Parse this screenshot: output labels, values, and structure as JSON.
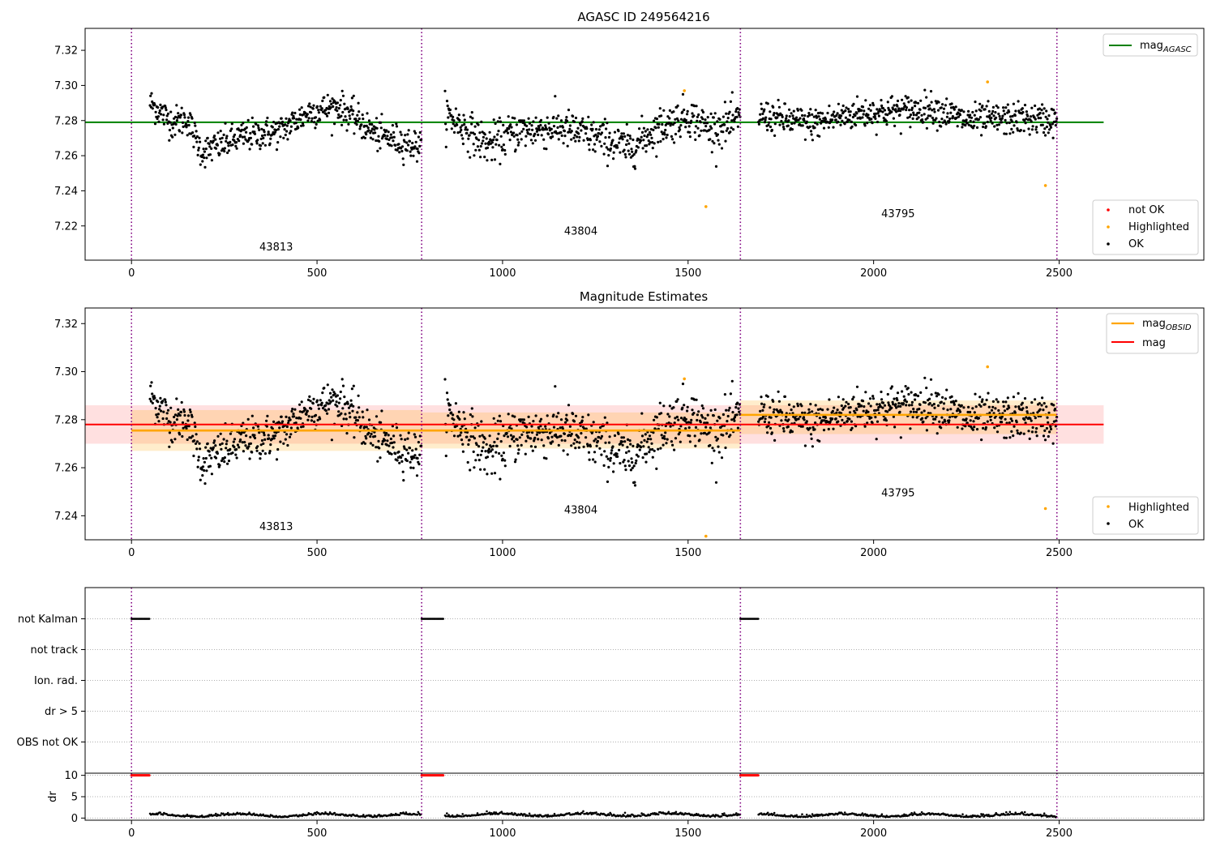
{
  "chart_data": [
    {
      "type": "scatter",
      "title": "AGASC ID 249564216",
      "xlim": [
        -125,
        2890
      ],
      "ylim": [
        7.2005,
        7.3325
      ],
      "xticks": [
        0,
        500,
        1000,
        1500,
        2000,
        2500
      ],
      "yticks": [
        7.22,
        7.24,
        7.26,
        7.28,
        7.3,
        7.32
      ],
      "reference_line": {
        "name": "mag_AGASC",
        "y": 7.279,
        "x_range": [
          -125,
          2620
        ],
        "color": "#008000"
      },
      "observation_boundaries": [
        0,
        782,
        1641,
        2494
      ],
      "observation_labels": [
        {
          "text": "43813",
          "x": 390,
          "y": 7.206
        },
        {
          "text": "43804",
          "x": 1211,
          "y": 7.215
        },
        {
          "text": "43795",
          "x": 2066,
          "y": 7.225
        }
      ],
      "series": [
        {
          "name": "not OK",
          "color": "#ff0000",
          "values": []
        },
        {
          "name": "Highlighted",
          "color": "#ffa500",
          "points": [
            [
              1490,
              7.297
            ],
            [
              1548,
              7.231
            ],
            [
              2307,
              7.302
            ],
            [
              2463,
              7.243
            ]
          ]
        },
        {
          "name": "OK",
          "color": "#000000",
          "segments": [
            {
              "x0": 50,
              "x1": 782,
              "anchors": [
                [
                  50,
                  7.29
                ],
                [
                  110,
                  7.279
                ],
                [
                  150,
                  7.281
                ],
                [
                  190,
                  7.262
                ],
                [
                  300,
                  7.271
                ],
                [
                  400,
                  7.274
                ],
                [
                  480,
                  7.285
                ],
                [
                  560,
                  7.288
                ],
                [
                  660,
                  7.272
                ],
                [
                  782,
                  7.265
                ]
              ],
              "noise": 0.0045
            },
            {
              "x0": 845,
              "x1": 1641,
              "anchors": [
                [
                  845,
                  7.284
                ],
                [
                  960,
                  7.266
                ],
                [
                  1040,
                  7.274
                ],
                [
                  1150,
                  7.276
                ],
                [
                  1280,
                  7.269
                ],
                [
                  1340,
                  7.264
                ],
                [
                  1420,
                  7.276
                ],
                [
                  1500,
                  7.283
                ],
                [
                  1560,
                  7.275
                ],
                [
                  1641,
                  7.28
                ]
              ],
              "noise": 0.0055
            },
            {
              "x0": 1690,
              "x1": 2494,
              "anchors": [
                [
                  1690,
                  7.283
                ],
                [
                  1830,
                  7.278
                ],
                [
                  1950,
                  7.284
                ],
                [
                  2100,
                  7.286
                ],
                [
                  2160,
                  7.287
                ],
                [
                  2250,
                  7.28
                ],
                [
                  2400,
                  7.281
                ],
                [
                  2494,
                  7.28
                ]
              ],
              "noise": 0.0045
            }
          ]
        }
      ],
      "legend": {
        "upper": [
          "mag_AGASC"
        ],
        "lower": [
          "not OK",
          "Highlighted",
          "OK"
        ],
        "placement": "upper-right and lower-right"
      }
    },
    {
      "type": "scatter",
      "title": "Magnitude Estimates",
      "xlim": [
        -125,
        2890
      ],
      "ylim": [
        7.23,
        7.3265
      ],
      "xticks": [
        0,
        500,
        1000,
        1500,
        2000,
        2500
      ],
      "yticks": [
        7.24,
        7.26,
        7.28,
        7.3,
        7.32
      ],
      "mag_line": {
        "name": "mag",
        "y": 7.278,
        "band": [
          7.27,
          7.286
        ],
        "x_range": [
          -125,
          2620
        ],
        "color": "#ff0000"
      },
      "obsid_mags": [
        {
          "x0": 0,
          "x1": 782,
          "y": 7.2755,
          "band": [
            7.267,
            7.284
          ]
        },
        {
          "x0": 782,
          "x1": 1641,
          "y": 7.2755,
          "band": [
            7.268,
            7.283
          ]
        },
        {
          "x0": 1641,
          "x1": 2494,
          "y": 7.282,
          "band": [
            7.274,
            7.288
          ]
        }
      ],
      "obsid_color": "#ffa500",
      "observation_boundaries": [
        0,
        782,
        1641,
        2494
      ],
      "observation_labels": [
        {
          "text": "43813",
          "x": 390,
          "y": 7.234
        },
        {
          "text": "43804",
          "x": 1211,
          "y": 7.241
        },
        {
          "text": "43795",
          "x": 2066,
          "y": 7.248
        }
      ],
      "highlighted_points": [
        [
          1490,
          7.297
        ],
        [
          1548,
          7.2315
        ],
        [
          2307,
          7.302
        ],
        [
          2463,
          7.243
        ]
      ],
      "legend": {
        "upper": [
          "mag_OBSID",
          "mag"
        ],
        "lower": [
          "Highlighted",
          "OK"
        ],
        "placement": "upper-right and lower-right"
      }
    },
    {
      "type": "scatter",
      "xlim": [
        -125,
        2890
      ],
      "flag_rows": [
        "not Kalman",
        "not track",
        "Ion. rad.",
        "dr > 5",
        "OBS not OK"
      ],
      "flag_runs": [
        {
          "row": "not Kalman",
          "x0": 0,
          "x1": 48
        },
        {
          "row": "not Kalman",
          "x0": 782,
          "x1": 840
        },
        {
          "row": "not Kalman",
          "x0": 1641,
          "x1": 1690
        }
      ],
      "observation_boundaries": [
        0,
        782,
        1641,
        2494
      ]
    },
    {
      "type": "scatter",
      "ylabel": "dr",
      "xlim": [
        -125,
        2890
      ],
      "ylim": [
        -0.5,
        10.5
      ],
      "xticks": [
        0,
        500,
        1000,
        1500,
        2000,
        2500
      ],
      "yticks": [
        0,
        5,
        10
      ],
      "clipped_runs": [
        {
          "x0": 0,
          "x1": 48,
          "y": 10
        },
        {
          "x0": 782,
          "x1": 840,
          "y": 10
        },
        {
          "x0": 1641,
          "x1": 1690,
          "y": 10
        }
      ],
      "clipped_color": "#ff0000",
      "dr_segments": [
        {
          "x0": 50,
          "x1": 782,
          "level": 0.5
        },
        {
          "x0": 845,
          "x1": 1641,
          "level": 0.6
        },
        {
          "x0": 1690,
          "x1": 2494,
          "level": 0.5
        }
      ],
      "observation_boundaries": [
        0,
        782,
        1641,
        2494
      ]
    }
  ]
}
